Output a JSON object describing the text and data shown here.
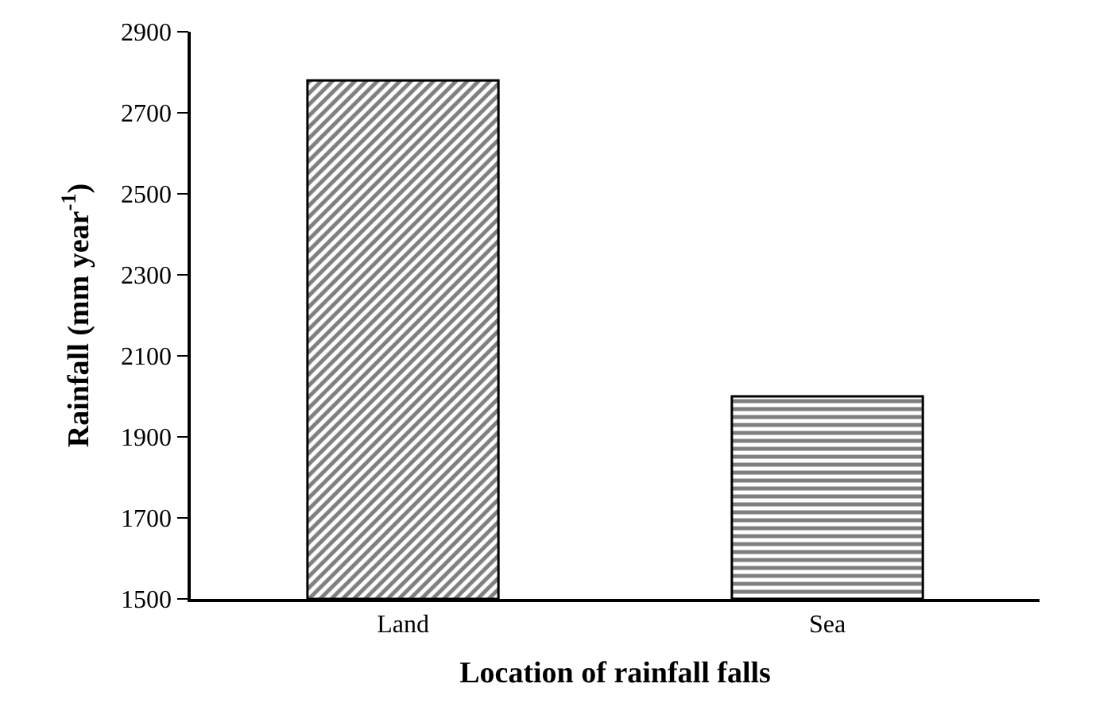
{
  "chart_data": {
    "type": "bar",
    "xlabel": "Location of rainfall falls",
    "ylabel": "Rainfall (mm year$^{-1}$)",
    "categories": [
      "Land",
      "Sea"
    ],
    "series": [
      {
        "color": "#000000",
        "values": [
          2780,
          2000
        ]
      }
    ],
    "ylim": [
      1500,
      2900
    ],
    "yticks": [
      1500,
      1700,
      1900,
      2100,
      2300,
      2500,
      2700,
      2900
    ]
  }
}
